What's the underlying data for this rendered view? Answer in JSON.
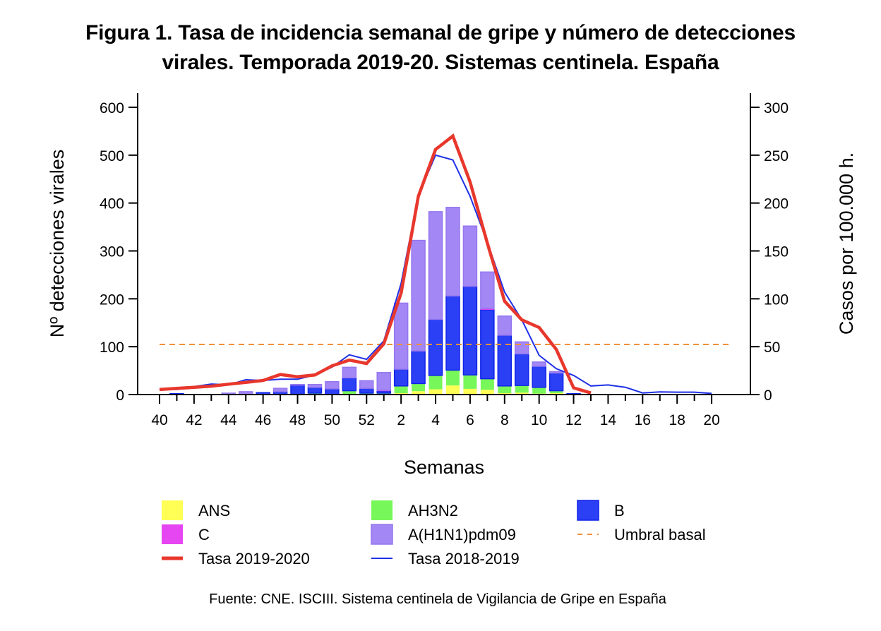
{
  "chart_data": {
    "type": "bar",
    "title_lines": [
      "Figura 1. Tasa de incidencia semanal de gripe y número de detecciones",
      "virales. Temporada 2019-20. Sistemas centinela. España"
    ],
    "xlabel": "Semanas",
    "ylabel_left": "Nº detecciones virales",
    "ylabel_right": "Casos por 100.000 h.",
    "ylim_left": [
      0,
      600
    ],
    "ylim_right": [
      0,
      300
    ],
    "yticks_left": [
      0,
      100,
      200,
      300,
      400,
      500,
      600
    ],
    "yticks_right": [
      0,
      50,
      100,
      150,
      200,
      250,
      300
    ],
    "weeks": [
      40,
      41,
      42,
      43,
      44,
      45,
      46,
      47,
      48,
      49,
      50,
      51,
      52,
      1,
      2,
      3,
      4,
      5,
      6,
      7,
      8,
      9,
      10,
      11,
      12,
      13,
      14,
      15,
      16,
      17,
      18,
      19,
      20
    ],
    "xtick_labels": [
      "40",
      "42",
      "44",
      "46",
      "48",
      "50",
      "52",
      "2",
      "4",
      "6",
      "8",
      "10",
      "12",
      "14",
      "16",
      "18",
      "20"
    ],
    "bar_series": [
      {
        "name": "ANS",
        "key": "ans",
        "color": "#ffff55",
        "values": [
          0,
          0,
          0,
          0,
          0,
          0,
          0,
          0,
          0,
          0,
          0,
          0,
          0,
          0,
          3,
          7,
          11,
          19,
          12,
          10,
          3,
          4,
          2,
          3,
          0,
          0,
          0,
          0,
          0,
          0,
          0,
          0,
          0
        ]
      },
      {
        "name": "AH3N2",
        "key": "ah3n2",
        "color": "#77f75a",
        "values": [
          0,
          0,
          0,
          0,
          0,
          0,
          0,
          0,
          0,
          3,
          0,
          8,
          3,
          3,
          15,
          16,
          29,
          32,
          29,
          23,
          15,
          15,
          13,
          5,
          0,
          0,
          0,
          0,
          0,
          0,
          0,
          0,
          0
        ]
      },
      {
        "name": "B",
        "key": "b",
        "color": "#2b3ff5",
        "values": [
          0,
          2,
          0,
          0,
          0,
          0,
          4,
          6,
          20,
          12,
          12,
          27,
          10,
          4,
          35,
          68,
          117,
          155,
          185,
          144,
          106,
          66,
          44,
          37,
          2,
          0,
          0,
          0,
          0,
          0,
          0,
          0,
          0
        ]
      },
      {
        "name": "C",
        "key": "c",
        "color": "#e645f2",
        "values": [
          0,
          0,
          0,
          0,
          0,
          0,
          0,
          0,
          0,
          0,
          0,
          0,
          0,
          2,
          0,
          0,
          0,
          0,
          0,
          3,
          0,
          0,
          0,
          0,
          0,
          0,
          0,
          0,
          0,
          0,
          0,
          0,
          0
        ]
      },
      {
        "name": "A(H1N1)pdm09",
        "key": "h1n1",
        "color": "#a287f5",
        "values": [
          0,
          0,
          0,
          0,
          3,
          6,
          0,
          7,
          1,
          6,
          15,
          22,
          16,
          37,
          138,
          231,
          225,
          185,
          126,
          76,
          40,
          25,
          9,
          3,
          0,
          0,
          0,
          0,
          0,
          0,
          0,
          0,
          0
        ]
      }
    ],
    "line_series": [
      {
        "name": "Tasa 2019-2020",
        "key": "rate_2019_2020",
        "color": "#e8372c",
        "axis": "right",
        "values": [
          5.2,
          6.4,
          7.6,
          8.8,
          10.8,
          12.7,
          14.7,
          20.9,
          18.6,
          20.4,
          30,
          36,
          32.4,
          53,
          106,
          207,
          256,
          270,
          222,
          158,
          97.5,
          78,
          70,
          47,
          7,
          1.7,
          null,
          null,
          null,
          null,
          null,
          null,
          null
        ]
      },
      {
        "name": "Tasa 2018-2019",
        "key": "rate_2018_2019",
        "color": "#1f31e6",
        "axis": "right",
        "values": [
          5.9,
          5.2,
          8.3,
          11,
          10.1,
          15.5,
          14.7,
          16,
          16,
          20.4,
          28.7,
          41.5,
          36.8,
          56,
          116,
          208,
          250,
          245,
          207,
          159,
          107,
          78,
          41,
          27,
          20,
          9,
          10,
          7.6,
          1.7,
          2.7,
          2.5,
          2.5,
          1.2
        ]
      }
    ],
    "threshold": {
      "name": "Umbral basal",
      "value": 52.3,
      "axis": "right",
      "color": "#f0903a",
      "style": "dashed"
    },
    "legend": {
      "placement": "bottom",
      "columns": [
        [
          {
            "label": "ANS",
            "kind": "box",
            "color": "#ffff55"
          },
          {
            "label": "C",
            "kind": "box",
            "color": "#e645f2"
          },
          {
            "label": "Tasa 2019-2020",
            "kind": "thick-line",
            "color": "#e8372c"
          }
        ],
        [
          {
            "label": "AH3N2",
            "kind": "box",
            "color": "#77f75a"
          },
          {
            "label": "A(H1N1)pdm09",
            "kind": "box",
            "color": "#a287f5"
          },
          {
            "label": "Tasa 2018-2019",
            "kind": "line",
            "color": "#1f31e6"
          }
        ],
        [
          {
            "label": "B",
            "kind": "box",
            "color": "#2b3ff5"
          },
          {
            "label": "Umbral basal",
            "kind": "dash",
            "color": "#f0903a"
          }
        ]
      ]
    },
    "source": "Fuente: CNE. ISCIII. Sistema centinela de Vigilancia de Gripe en España",
    "grid": false
  }
}
